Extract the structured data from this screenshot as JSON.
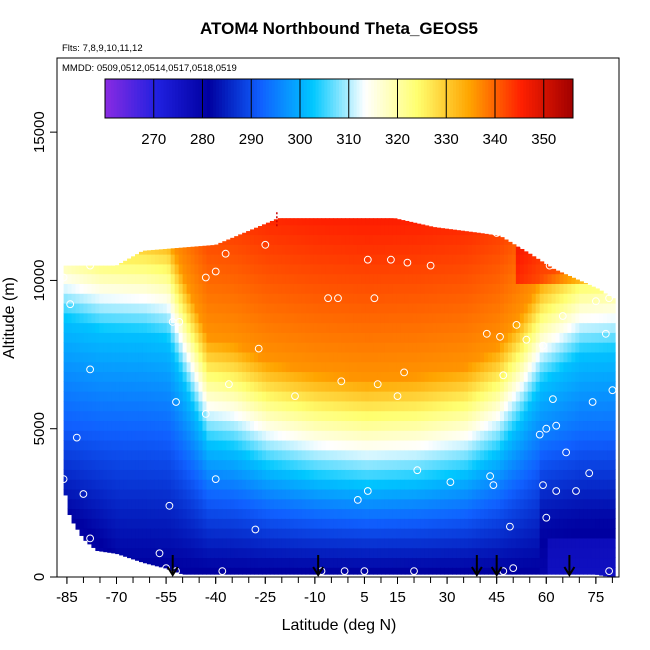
{
  "chart_data": {
    "type": "heatmap",
    "title": "ATOM4 Northbound Theta_GEOS5",
    "subtitle_flights": "Flts: 7,8,9,10,11,12",
    "subtitle_dates": "MMDD: 0509,0512,0514,0517,0518,0519",
    "xlabel": "Latitude (deg N)",
    "ylabel": "Altitude (m)",
    "xlim": [
      -88,
      82
    ],
    "ylim": [
      0,
      17500
    ],
    "x_tick_labels": [
      "-85",
      "-70",
      "-55",
      "-40",
      "-25",
      "-10",
      "5",
      "15",
      "30",
      "45",
      "60",
      "75"
    ],
    "x_tick_values": [
      -85,
      -70,
      -55,
      -40,
      -25,
      -10,
      5,
      15,
      30,
      45,
      60,
      75
    ],
    "y_tick_labels": [
      "0",
      "5000",
      "10000",
      "15000"
    ],
    "y_tick_values": [
      0,
      5000,
      10000,
      15000
    ],
    "colorbar": {
      "range": [
        260,
        356
      ],
      "tick_labels": [
        "270",
        "280",
        "290",
        "300",
        "310",
        "320",
        "330",
        "340",
        "350"
      ],
      "tick_values": [
        270,
        280,
        290,
        300,
        310,
        320,
        330,
        340,
        350
      ],
      "colors": [
        "#8a2be2",
        "#2020e0",
        "#0000a0",
        "#1060ff",
        "#00c8ff",
        "#ffffff",
        "#ffff70",
        "#ffa500",
        "#ff2000",
        "#a00000"
      ]
    },
    "field": {
      "description": "Potential temperature (K) over latitude and altitude",
      "min_value": 268,
      "max_value": 355
    },
    "flight_markers_latitude": [
      -53,
      -9,
      39,
      45,
      67
    ],
    "observation_points": [
      [
        -86,
        10100
      ],
      [
        -84,
        9200
      ],
      [
        -78,
        10500
      ],
      [
        -78,
        7000
      ],
      [
        -82,
        4700
      ],
      [
        -80,
        2800
      ],
      [
        -78,
        1300
      ],
      [
        -86,
        3300
      ],
      [
        -57,
        800
      ],
      [
        -55,
        300
      ],
      [
        -52,
        200
      ],
      [
        -54,
        2400
      ],
      [
        -52,
        5900
      ],
      [
        -53,
        8600
      ],
      [
        -51,
        8600
      ],
      [
        -43,
        10100
      ],
      [
        -40,
        10300
      ],
      [
        -37,
        10900
      ],
      [
        -43,
        5500
      ],
      [
        -40,
        3300
      ],
      [
        -36,
        6500
      ],
      [
        -38,
        200
      ],
      [
        -28,
        1600
      ],
      [
        -27,
        7700
      ],
      [
        -25,
        11200
      ],
      [
        -16,
        6100
      ],
      [
        -8,
        200
      ],
      [
        -6,
        9400
      ],
      [
        -3,
        9400
      ],
      [
        -2,
        6600
      ],
      [
        -1,
        200
      ],
      [
        3,
        2600
      ],
      [
        5,
        200
      ],
      [
        6,
        2900
      ],
      [
        6,
        10700
      ],
      [
        8,
        9400
      ],
      [
        9,
        6500
      ],
      [
        13,
        10700
      ],
      [
        15,
        6100
      ],
      [
        17,
        6900
      ],
      [
        18,
        10600
      ],
      [
        20,
        200
      ],
      [
        21,
        3600
      ],
      [
        25,
        10500
      ],
      [
        31,
        3200
      ],
      [
        42,
        8200
      ],
      [
        43,
        3400
      ],
      [
        44,
        3100
      ],
      [
        45,
        11600
      ],
      [
        46,
        8100
      ],
      [
        47,
        200
      ],
      [
        47,
        6800
      ],
      [
        49,
        1700
      ],
      [
        50,
        300
      ],
      [
        51,
        8500
      ],
      [
        53,
        11200
      ],
      [
        54,
        8000
      ],
      [
        58,
        4800
      ],
      [
        59,
        3100
      ],
      [
        60,
        5000
      ],
      [
        60,
        2000
      ],
      [
        59,
        7800
      ],
      [
        61,
        10500
      ],
      [
        62,
        6000
      ],
      [
        63,
        5100
      ],
      [
        63,
        2900
      ],
      [
        65,
        8800
      ],
      [
        66,
        4200
      ],
      [
        67,
        10800
      ],
      [
        68,
        10300
      ],
      [
        69,
        2900
      ],
      [
        73,
        3500
      ],
      [
        74,
        5900
      ],
      [
        75,
        9300
      ],
      [
        76,
        10800
      ],
      [
        78,
        8200
      ],
      [
        79,
        9400
      ],
      [
        80,
        6300
      ],
      [
        79,
        200
      ]
    ]
  }
}
